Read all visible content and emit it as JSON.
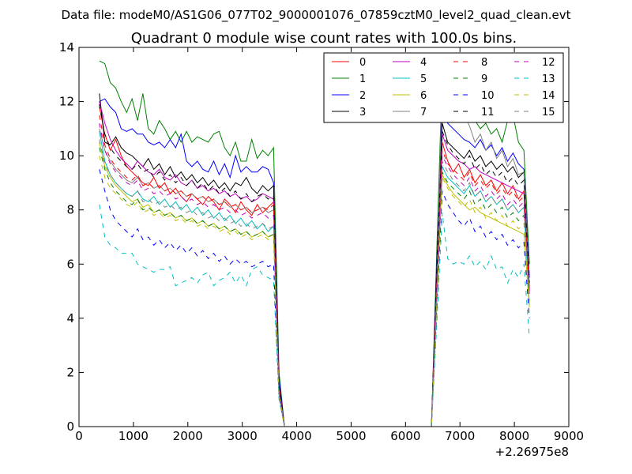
{
  "figure": {
    "suptitle": "Data file: modeM0/AS1G06_077T02_9000001076_07859cztM0_level2_quad_clean.evt"
  },
  "chart_data": {
    "type": "line",
    "title": "Quadrant 0 module wise count rates with 100.0s bins.",
    "xlabel": "",
    "ylabel": "",
    "x_offset_label": "+2.26975e8",
    "xlim": [
      0,
      9000
    ],
    "ylim": [
      0,
      14
    ],
    "xticks": [
      "0",
      "1000",
      "2000",
      "3000",
      "4000",
      "5000",
      "6000",
      "7000",
      "8000",
      "9000"
    ],
    "yticks": [
      "0",
      "2",
      "4",
      "6",
      "8",
      "10",
      "12",
      "14"
    ],
    "grid": false,
    "legend": {
      "position": "top-right",
      "columns": 4
    },
    "x": [
      375,
      475,
      575,
      675,
      775,
      875,
      975,
      1075,
      1175,
      1275,
      1375,
      1475,
      1575,
      1675,
      1775,
      1875,
      1975,
      2075,
      2175,
      2275,
      2375,
      2475,
      2575,
      2675,
      2775,
      2875,
      2975,
      3075,
      3175,
      3275,
      3375,
      3475,
      3575,
      3675,
      3775,
      3875,
      4375,
      4875,
      5375,
      5875,
      6375,
      6475,
      6575,
      6675,
      6775,
      6875,
      6975,
      7075,
      7175,
      7275,
      7375,
      7475,
      7575,
      7675,
      7775,
      7875,
      7975,
      8075,
      8175,
      8275
    ],
    "series": [
      {
        "name": "0",
        "color": "#ff0000",
        "dash": "solid",
        "values": [
          11.8,
          10.8,
          10.2,
          10.6,
          10.0,
          9.6,
          9.4,
          9.2,
          9.0,
          8.9,
          9.2,
          8.8,
          9.0,
          8.6,
          8.8,
          8.5,
          8.3,
          8.6,
          8.4,
          8.2,
          8.5,
          8.3,
          8.0,
          8.4,
          8.2,
          7.9,
          8.3,
          8.0,
          7.8,
          8.2,
          7.9,
          8.1,
          8.3,
          1.5,
          0.0,
          0,
          0,
          0,
          0,
          0,
          0,
          0,
          5.2,
          10.5,
          9.8,
          9.4,
          9.7,
          9.2,
          9.5,
          9.0,
          9.3,
          8.9,
          9.1,
          8.7,
          9.0,
          8.6,
          8.9,
          8.4,
          8.7,
          5.5
        ]
      },
      {
        "name": "1",
        "color": "#008000",
        "dash": "solid",
        "values": [
          13.5,
          13.4,
          12.7,
          12.5,
          12.0,
          11.6,
          12.1,
          11.3,
          12.3,
          11.0,
          10.8,
          11.3,
          11.0,
          10.6,
          10.9,
          10.5,
          10.9,
          10.5,
          10.7,
          10.6,
          10.5,
          10.8,
          10.9,
          10.3,
          10.0,
          10.5,
          9.8,
          9.8,
          10.6,
          9.9,
          10.2,
          10.0,
          10.3,
          2.0,
          0.0,
          0,
          0,
          0,
          0,
          0,
          0,
          0,
          6.5,
          13.0,
          12.2,
          12.5,
          12.2,
          11.8,
          11.5,
          11.3,
          11.0,
          11.2,
          10.8,
          11.0,
          10.5,
          11.3,
          11.5,
          10.5,
          10.2,
          6.0
        ]
      },
      {
        "name": "2",
        "color": "#0000ff",
        "dash": "solid",
        "values": [
          12.0,
          12.1,
          11.8,
          11.6,
          11.0,
          10.9,
          11.0,
          10.8,
          10.8,
          10.5,
          10.4,
          10.5,
          10.3,
          10.6,
          10.3,
          10.8,
          9.8,
          9.6,
          9.8,
          9.5,
          9.4,
          9.8,
          9.3,
          9.7,
          9.2,
          10.0,
          9.4,
          9.6,
          9.4,
          9.4,
          9.6,
          9.5,
          9.0,
          1.8,
          0.0,
          0,
          0,
          0,
          0,
          0,
          0,
          0,
          6.0,
          11.8,
          11.2,
          11.0,
          10.8,
          10.6,
          10.5,
          10.3,
          10.6,
          10.2,
          10.4,
          10.0,
          10.3,
          9.8,
          10.1,
          9.7,
          9.5,
          5.5
        ]
      },
      {
        "name": "3",
        "color": "#000000",
        "dash": "solid",
        "values": [
          12.3,
          10.5,
          10.4,
          10.7,
          10.3,
          10.1,
          10.0,
          9.8,
          9.6,
          9.9,
          9.5,
          9.7,
          9.3,
          9.6,
          9.2,
          9.4,
          9.1,
          9.3,
          9.0,
          9.2,
          8.9,
          9.1,
          8.8,
          9.0,
          8.7,
          9.0,
          8.9,
          9.2,
          8.8,
          8.6,
          8.9,
          8.7,
          8.9,
          1.6,
          0.0,
          0,
          0,
          0,
          0,
          0,
          0,
          0,
          5.8,
          11.2,
          10.5,
          10.3,
          10.1,
          9.9,
          10.2,
          9.8,
          10.0,
          9.6,
          9.8,
          9.5,
          9.7,
          9.4,
          9.6,
          9.2,
          9.4,
          5.0
        ]
      },
      {
        "name": "4",
        "color": "#bf00bf",
        "dash": "solid",
        "values": [
          12.0,
          11.2,
          10.6,
          10.2,
          9.9,
          9.7,
          9.5,
          9.8,
          9.6,
          9.4,
          9.3,
          9.5,
          9.2,
          9.1,
          9.3,
          9.0,
          8.9,
          9.1,
          8.8,
          8.9,
          8.7,
          8.8,
          8.6,
          8.7,
          8.5,
          8.6,
          8.4,
          8.5,
          8.3,
          8.4,
          8.6,
          8.5,
          8.4,
          1.5,
          0.0,
          0,
          0,
          0,
          0,
          0,
          0,
          0,
          5.5,
          10.8,
          10.2,
          10.0,
          9.8,
          9.7,
          9.5,
          9.6,
          9.4,
          9.3,
          9.2,
          9.1,
          9.0,
          8.9,
          8.8,
          8.7,
          8.6,
          5.0
        ]
      },
      {
        "name": "5",
        "color": "#00bfbf",
        "dash": "solid",
        "values": [
          10.9,
          9.8,
          9.3,
          9.0,
          8.8,
          8.6,
          8.5,
          8.7,
          8.4,
          8.3,
          8.5,
          8.2,
          8.4,
          8.1,
          8.3,
          8.0,
          8.2,
          7.9,
          8.1,
          7.8,
          8.0,
          7.7,
          7.9,
          7.6,
          7.8,
          7.5,
          7.7,
          7.4,
          7.6,
          7.3,
          7.5,
          7.2,
          7.4,
          1.3,
          0.0,
          0,
          0,
          0,
          0,
          0,
          0,
          0,
          4.8,
          9.6,
          9.2,
          9.0,
          8.8,
          8.6,
          8.9,
          8.5,
          8.7,
          8.3,
          8.5,
          8.2,
          8.4,
          8.0,
          8.2,
          7.9,
          8.1,
          4.5
        ]
      },
      {
        "name": "6",
        "color": "#bfbf00",
        "dash": "solid",
        "values": [
          10.5,
          9.6,
          9.2,
          8.9,
          8.7,
          8.5,
          8.3,
          8.4,
          8.1,
          8.2,
          7.9,
          8.0,
          7.8,
          7.9,
          7.7,
          7.8,
          7.6,
          7.7,
          7.5,
          7.6,
          7.4,
          7.5,
          7.3,
          7.4,
          7.2,
          7.3,
          7.1,
          7.2,
          7.0,
          7.1,
          7.2,
          7.0,
          7.1,
          1.2,
          0.0,
          0,
          0,
          0,
          0,
          0,
          0,
          0,
          4.6,
          9.3,
          8.9,
          8.6,
          8.4,
          8.2,
          8.0,
          8.1,
          7.9,
          7.8,
          7.7,
          7.6,
          7.5,
          7.4,
          7.3,
          7.2,
          7.1,
          4.4
        ]
      },
      {
        "name": "7",
        "color": "#808080",
        "dash": "solid",
        "values": [
          11.0,
          10.2,
          9.8,
          9.5,
          9.3,
          9.1,
          9.0,
          9.2,
          8.9,
          9.0,
          8.8,
          8.9,
          8.7,
          8.8,
          8.6,
          8.7,
          8.5,
          8.6,
          8.4,
          8.5,
          8.3,
          8.4,
          8.2,
          8.3,
          8.1,
          8.2,
          8.0,
          8.1,
          7.9,
          8.0,
          8.1,
          7.9,
          8.0,
          1.4,
          0.0,
          0,
          0,
          0,
          0,
          0,
          0,
          0,
          5.3,
          12.8,
          12.2,
          12.4,
          11.8,
          11.5,
          11.1,
          10.5,
          10.8,
          10.2,
          10.5,
          9.9,
          10.2,
          9.6,
          9.9,
          9.3,
          9.4,
          5.2
        ]
      },
      {
        "name": "8",
        "color": "#ff0000",
        "dash": "dashed",
        "values": [
          11.5,
          10.4,
          9.9,
          9.6,
          9.4,
          9.2,
          9.1,
          9.3,
          8.9,
          9.0,
          8.8,
          8.9,
          8.7,
          8.8,
          8.6,
          8.7,
          8.5,
          8.6,
          8.4,
          8.5,
          8.3,
          8.4,
          8.2,
          8.3,
          8.1,
          8.2,
          8.0,
          8.1,
          7.9,
          8.0,
          8.1,
          8.0,
          8.2,
          1.4,
          0.0,
          0,
          0,
          0,
          0,
          0,
          0,
          0,
          5.2,
          10.2,
          9.7,
          9.5,
          9.3,
          9.1,
          9.4,
          8.9,
          9.1,
          8.8,
          9.0,
          8.6,
          8.8,
          8.5,
          8.7,
          8.3,
          8.5,
          5.0
        ]
      },
      {
        "name": "9",
        "color": "#008000",
        "dash": "dashed",
        "values": [
          10.3,
          9.5,
          9.0,
          8.7,
          8.5,
          8.3,
          8.2,
          8.4,
          8.0,
          8.1,
          7.9,
          8.0,
          7.8,
          7.9,
          7.7,
          7.8,
          7.6,
          7.7,
          7.5,
          7.6,
          7.4,
          7.5,
          7.3,
          7.4,
          7.2,
          7.3,
          7.1,
          7.2,
          7.0,
          7.1,
          7.2,
          7.0,
          7.1,
          1.2,
          0.0,
          0,
          0,
          0,
          0,
          0,
          0,
          0,
          4.7,
          9.4,
          9.0,
          8.8,
          8.6,
          8.4,
          8.7,
          8.2,
          8.4,
          8.0,
          8.2,
          7.9,
          8.1,
          7.7,
          7.9,
          7.6,
          7.8,
          4.6
        ]
      },
      {
        "name": "10",
        "color": "#0000ff",
        "dash": "dashed",
        "values": [
          9.5,
          8.7,
          8.0,
          7.6,
          7.4,
          7.2,
          7.0,
          7.3,
          6.9,
          7.0,
          6.7,
          6.9,
          6.6,
          6.8,
          6.5,
          6.7,
          6.4,
          6.6,
          6.3,
          6.5,
          6.2,
          6.4,
          6.1,
          6.3,
          6.0,
          6.2,
          6.0,
          6.1,
          5.9,
          6.0,
          6.1,
          5.9,
          6.0,
          1.1,
          0.0,
          0,
          0,
          0,
          0,
          0,
          0,
          0,
          4.2,
          8.7,
          8.2,
          7.9,
          7.6,
          7.4,
          7.7,
          7.2,
          7.4,
          7.0,
          7.2,
          6.9,
          7.1,
          6.7,
          6.9,
          6.6,
          6.8,
          4.0
        ]
      },
      {
        "name": "11",
        "color": "#000000",
        "dash": "dashed",
        "values": [
          11.9,
          10.8,
          10.3,
          10.0,
          9.8,
          9.6,
          9.5,
          9.7,
          9.4,
          9.5,
          9.2,
          9.4,
          9.1,
          9.3,
          9.0,
          9.2,
          8.9,
          9.1,
          8.8,
          9.0,
          8.7,
          8.9,
          8.6,
          8.8,
          8.5,
          8.7,
          8.4,
          8.6,
          8.3,
          8.5,
          8.6,
          8.4,
          8.5,
          1.5,
          0.0,
          0,
          0,
          0,
          0,
          0,
          0,
          0,
          5.6,
          10.9,
          10.4,
          10.1,
          9.9,
          9.7,
          10.0,
          9.5,
          9.7,
          9.3,
          9.5,
          9.2,
          9.4,
          9.0,
          9.2,
          8.9,
          9.1,
          5.3
        ]
      },
      {
        "name": "12",
        "color": "#bf00bf",
        "dash": "dashed",
        "values": [
          11.2,
          10.2,
          9.7,
          9.4,
          9.2,
          9.0,
          8.9,
          9.1,
          8.7,
          8.8,
          8.6,
          8.7,
          8.5,
          8.6,
          8.4,
          8.5,
          8.3,
          8.4,
          8.2,
          8.3,
          8.1,
          8.2,
          8.0,
          8.1,
          7.9,
          8.0,
          7.8,
          7.9,
          7.7,
          7.8,
          7.9,
          7.7,
          7.8,
          1.3,
          0.0,
          0,
          0,
          0,
          0,
          0,
          0,
          0,
          5.1,
          10.0,
          9.6,
          9.3,
          9.1,
          8.9,
          9.2,
          8.7,
          8.9,
          8.5,
          8.7,
          8.4,
          8.6,
          8.2,
          8.4,
          8.1,
          8.3,
          4.9
        ]
      },
      {
        "name": "13",
        "color": "#00bfbf",
        "dash": "dashed",
        "values": [
          8.2,
          7.0,
          6.7,
          6.6,
          6.4,
          6.4,
          6.4,
          6.0,
          5.9,
          5.8,
          5.7,
          5.8,
          5.8,
          5.9,
          5.2,
          5.3,
          5.4,
          5.5,
          5.3,
          5.6,
          5.7,
          5.2,
          5.4,
          5.5,
          5.7,
          5.3,
          5.6,
          5.2,
          5.8,
          5.9,
          5.6,
          5.5,
          5.4,
          1.0,
          0.0,
          0,
          0,
          0,
          0,
          0,
          0,
          0,
          3.8,
          7.9,
          6.2,
          6.0,
          6.1,
          6.0,
          6.3,
          5.9,
          6.1,
          5.8,
          6.3,
          5.8,
          5.9,
          5.3,
          5.8,
          5.5,
          6.0,
          3.3
        ]
      },
      {
        "name": "14",
        "color": "#bfbf00",
        "dash": "dashed",
        "values": [
          10.0,
          9.2,
          8.8,
          8.6,
          8.4,
          8.2,
          8.1,
          8.3,
          7.9,
          8.0,
          7.8,
          7.9,
          7.7,
          7.8,
          7.6,
          7.7,
          7.5,
          7.6,
          7.4,
          7.5,
          7.3,
          7.4,
          7.2,
          7.3,
          7.1,
          7.2,
          7.0,
          7.1,
          6.9,
          7.0,
          7.1,
          6.9,
          7.0,
          1.2,
          0.0,
          0,
          0,
          0,
          0,
          0,
          0,
          0,
          4.5,
          9.2,
          8.8,
          8.5,
          8.3,
          8.1,
          8.4,
          7.9,
          8.1,
          7.7,
          7.9,
          7.6,
          7.8,
          7.4,
          7.6,
          7.3,
          7.5,
          4.5
        ]
      },
      {
        "name": "15",
        "color": "#808080",
        "dash": "dashed",
        "values": [
          10.6,
          9.7,
          9.3,
          9.0,
          8.8,
          8.6,
          8.5,
          8.7,
          8.3,
          8.4,
          8.2,
          8.3,
          8.1,
          8.2,
          8.0,
          8.1,
          7.9,
          8.0,
          7.8,
          7.9,
          7.7,
          7.8,
          7.6,
          7.7,
          7.5,
          7.6,
          7.4,
          7.5,
          7.3,
          7.4,
          7.5,
          7.3,
          7.4,
          1.3,
          0.0,
          0,
          0,
          0,
          0,
          0,
          0,
          0,
          4.9,
          9.8,
          9.4,
          9.1,
          8.9,
          8.7,
          9.0,
          8.5,
          8.7,
          8.3,
          8.5,
          8.2,
          8.4,
          8.0,
          8.2,
          7.9,
          8.1,
          4.8
        ]
      }
    ]
  }
}
